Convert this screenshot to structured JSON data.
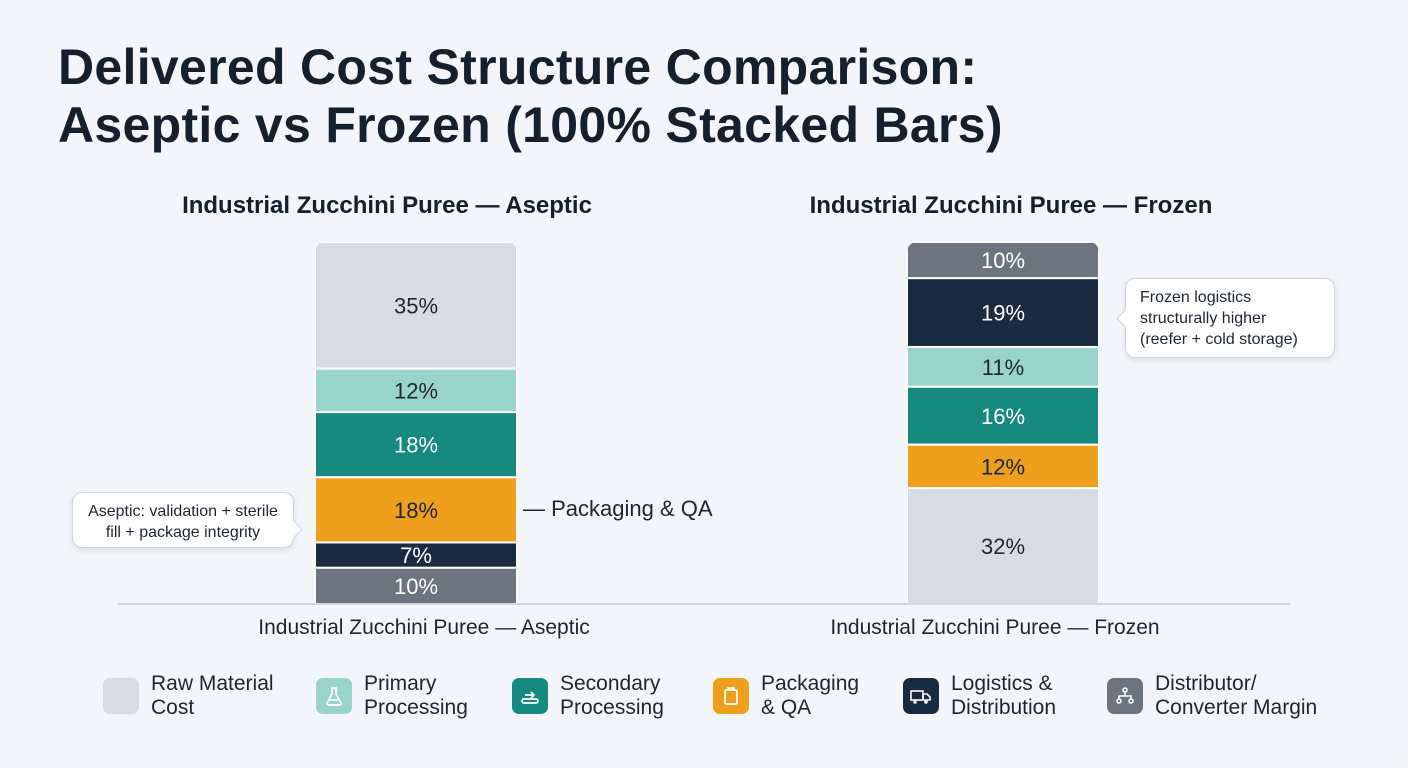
{
  "title_lines": [
    "Delivered Cost Structure Comparison:",
    "Aseptic vs Frozen (100% Stacked Bars)"
  ],
  "colors": {
    "raw_material": "#d8dbe3",
    "primary_processing": "#98d3cc",
    "secondary_processing": "#178a80",
    "packaging_qa": "#ee9f1c",
    "logistics": "#1a2a40",
    "margin": "#6c757f"
  },
  "chart_data": [
    {
      "type": "bar",
      "subtitle": "Industrial Zucchini Puree — Aseptic",
      "category": "Industrial Zucchini Puree — Aseptic",
      "stack_order_top_to_bottom": [
        "Raw Material Cost",
        "Primary Processing",
        "Secondary Processing",
        "Packaging & QA",
        "Logistics & Distribution",
        "Distributor/ Converter Margin"
      ],
      "values": [
        35,
        12,
        18,
        18,
        7,
        10
      ],
      "labels": [
        "35%",
        "12%",
        "18%",
        "18%",
        "7%",
        "10%"
      ]
    },
    {
      "type": "bar",
      "subtitle": "Industrial Zucchini Puree — Frozen",
      "category": "Industrial Zucchini Puree — Frozen",
      "stack_order_top_to_bottom": [
        "Distributor/ Converter Margin",
        "Logistics & Distribution",
        "Primary Processing",
        "Secondary Processing",
        "Packaging & QA",
        "Raw Material Cost"
      ],
      "values": [
        10,
        19,
        11,
        16,
        12,
        32
      ],
      "labels": [
        "10%",
        "19%",
        "11%",
        "16%",
        "12%",
        "32%"
      ]
    }
  ],
  "annotations": {
    "aseptic_callout": "Aseptic: validation + sterile\nfill + package integrity",
    "aseptic_segment_label": "— Packaging & QA",
    "frozen_callout": "Frozen logistics\nstructurally higher\n(reefer + cold storage)"
  },
  "legend": [
    {
      "label": "Raw Material\nCost",
      "icon": "raw-material-swatch"
    },
    {
      "label": "Primary\nProcessing",
      "icon": "flask-icon"
    },
    {
      "label": "Secondary\nProcessing",
      "icon": "conveyor-icon"
    },
    {
      "label": "Packaging\n& QA",
      "icon": "package-icon"
    },
    {
      "label": "Logistics &\nDistribution",
      "icon": "truck-icon"
    },
    {
      "label": "Distributor/\nConverter Margin",
      "icon": "network-icon"
    }
  ]
}
